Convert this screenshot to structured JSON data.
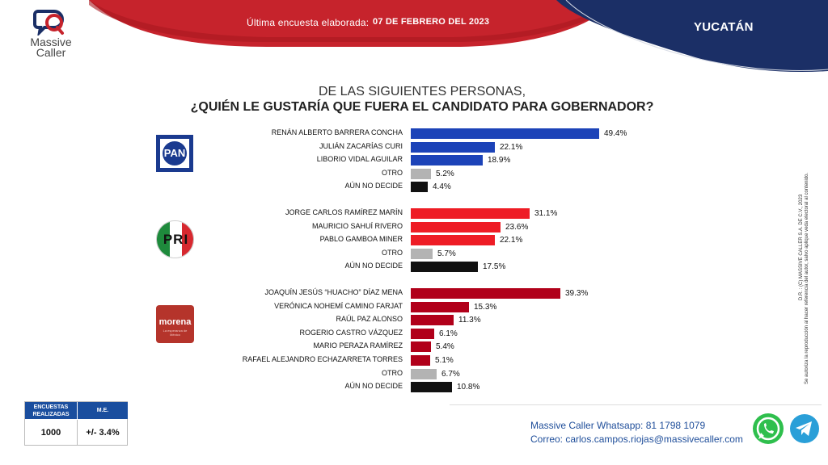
{
  "header": {
    "survey_date_label": "Última encuesta elaborada:",
    "survey_date_value": "07 DE FEBRERO DEL 2023",
    "state": "YUCATÁN"
  },
  "logo": {
    "line1": "Massive",
    "line2": "Caller"
  },
  "question": {
    "line1": "DE LAS SIGUIENTES PERSONAS,",
    "line2": "¿QUIÉN LE GUSTARÍA QUE FUERA EL CANDIDATO PARA GOBERNADOR?"
  },
  "parties": {
    "pan": "PAN",
    "pri": "PRI",
    "morena": "morena",
    "morena_sub": "La esperanza de México"
  },
  "colors": {
    "pan": "#1c43b8",
    "pri": "#ee1c25",
    "morena": "#b1001a",
    "otro": "#b3b3b3",
    "nodecide": "#111111",
    "header_red": "#c6232c",
    "header_blue": "#1b2f66"
  },
  "chart_data": {
    "type": "bar",
    "orientation": "horizontal",
    "title": "¿QUIÉN LE GUSTARÍA QUE FUERA EL CANDIDATO PARA GOBERNADOR?",
    "unit": "%",
    "xlim": [
      0,
      60
    ],
    "groups": [
      {
        "party": "PAN",
        "rows": [
          {
            "label": "RENÁN ALBERTO BARRERA CONCHA",
            "value": 49.4,
            "kind": "party"
          },
          {
            "label": "JULIÁN ZACARÍAS CURI",
            "value": 22.1,
            "kind": "party"
          },
          {
            "label": "LIBORIO  VIDAL AGUILAR",
            "value": 18.9,
            "kind": "party"
          },
          {
            "label": "OTRO",
            "value": 5.2,
            "kind": "otro"
          },
          {
            "label": "AÚN NO DECIDE",
            "value": 4.4,
            "kind": "nodecide"
          }
        ]
      },
      {
        "party": "PRI",
        "rows": [
          {
            "label": "JORGE CARLOS RAMÍREZ MARÍN",
            "value": 31.1,
            "kind": "party"
          },
          {
            "label": "MAURICIO SAHUÍ RIVERO",
            "value": 23.6,
            "kind": "party"
          },
          {
            "label": "PABLO GAMBOA MINER",
            "value": 22.1,
            "kind": "party"
          },
          {
            "label": "OTRO",
            "value": 5.7,
            "kind": "otro"
          },
          {
            "label": "AÚN NO DECIDE",
            "value": 17.5,
            "kind": "nodecide"
          }
        ]
      },
      {
        "party": "MORENA",
        "rows": [
          {
            "label": "JOAQUÍN JESÚS “HUACHO” DÍAZ MENA",
            "value": 39.3,
            "kind": "party"
          },
          {
            "label": "VERÓNICA NOHEMÍ CAMINO FARJAT",
            "value": 15.3,
            "kind": "party"
          },
          {
            "label": "RAÚL PAZ ALONSO",
            "value": 11.3,
            "kind": "party"
          },
          {
            "label": "ROGERIO CASTRO VÁZQUEZ",
            "value": 6.1,
            "kind": "party"
          },
          {
            "label": "MARIO PERAZA RAMÍREZ",
            "value": 5.4,
            "kind": "party"
          },
          {
            "label": "RAFAEL ALEJANDRO ECHAZARRETA TORRES",
            "value": 5.1,
            "kind": "party"
          },
          {
            "label": "OTRO",
            "value": 6.7,
            "kind": "otro"
          },
          {
            "label": "AÚN NO DECIDE",
            "value": 10.8,
            "kind": "nodecide"
          }
        ]
      }
    ]
  },
  "legal": {
    "line1": "D.R. : (C) MASSIVE CALLER S.A. DE C.V., 2023",
    "line2": "Se autoriza la reproducción al hacer referencia del autor, salvo aplique veda electoral al contenido."
  },
  "sample": {
    "encuestas_label": "ENCUESTAS REALIZADAS",
    "me_label": "M.E.",
    "encuestas_value": "1000",
    "me_value": "+/- 3.4%"
  },
  "footer": {
    "whatsapp_line": "Massive Caller Whatsapp: 81 1798 1079",
    "email_line": "Correo: carlos.campos.riojas@massivecaller.com"
  }
}
